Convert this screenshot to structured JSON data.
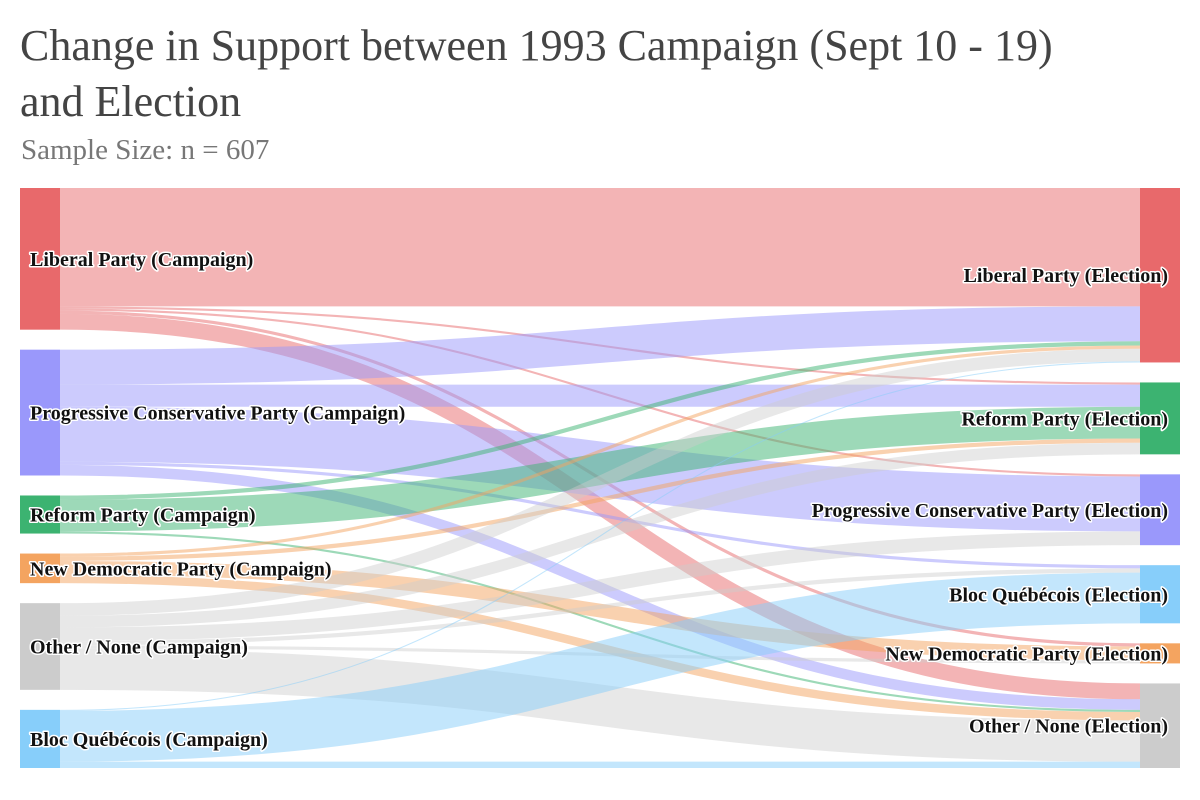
{
  "chart_data": {
    "type": "sankey",
    "title": "Change in Support between 1993 Campaign (Sept 10 - 19) and Election",
    "subtitle": "Sample Size: n = 607",
    "sources": [
      {
        "id": "lib_c",
        "label": "Liberal Party (Campaign)",
        "color": "#e8696b"
      },
      {
        "id": "pc_c",
        "label": "Progressive Conservative Party (Campaign)",
        "color": "#9a98fb"
      },
      {
        "id": "ref_c",
        "label": "Reform Party (Campaign)",
        "color": "#3cb371"
      },
      {
        "id": "ndp_c",
        "label": "New Democratic Party (Campaign)",
        "color": "#f4a460"
      },
      {
        "id": "oth_c",
        "label": "Other / None (Campaign)",
        "color": "#cccccc"
      },
      {
        "id": "bq_c",
        "label": "Bloc Québécois (Campaign)",
        "color": "#87cefa"
      }
    ],
    "targets": [
      {
        "id": "lib_e",
        "label": "Liberal Party (Election)",
        "color": "#e8696b"
      },
      {
        "id": "ref_e",
        "label": "Reform Party (Election)",
        "color": "#3cb371"
      },
      {
        "id": "pc_e",
        "label": "Progressive Conservative Party (Election)",
        "color": "#9a98fb"
      },
      {
        "id": "bq_e",
        "label": "Bloc Québécois (Election)",
        "color": "#87cefa"
      },
      {
        "id": "ndp_e",
        "label": "New Democratic Party (Election)",
        "color": "#f4a460"
      },
      {
        "id": "oth_e",
        "label": "Other / None (Election)",
        "color": "#cccccc"
      }
    ],
    "links": [
      {
        "source": "lib_c",
        "target": "lib_e",
        "value": 112
      },
      {
        "source": "lib_c",
        "target": "ref_e",
        "value": 2
      },
      {
        "source": "lib_c",
        "target": "pc_e",
        "value": 2
      },
      {
        "source": "lib_c",
        "target": "ndp_e",
        "value": 3
      },
      {
        "source": "lib_c",
        "target": "oth_e",
        "value": 15
      },
      {
        "source": "pc_c",
        "target": "lib_e",
        "value": 33
      },
      {
        "source": "pc_c",
        "target": "ref_e",
        "value": 21
      },
      {
        "source": "pc_c",
        "target": "pc_e",
        "value": 52
      },
      {
        "source": "pc_c",
        "target": "bq_e",
        "value": 3
      },
      {
        "source": "pc_c",
        "target": "oth_e",
        "value": 10
      },
      {
        "source": "ref_c",
        "target": "lib_e",
        "value": 4
      },
      {
        "source": "ref_c",
        "target": "ref_e",
        "value": 30
      },
      {
        "source": "ref_c",
        "target": "oth_e",
        "value": 2
      },
      {
        "source": "ndp_c",
        "target": "lib_e",
        "value": 3
      },
      {
        "source": "ndp_c",
        "target": "ref_e",
        "value": 4
      },
      {
        "source": "ndp_c",
        "target": "ndp_e",
        "value": 13
      },
      {
        "source": "ndp_c",
        "target": "oth_e",
        "value": 8
      },
      {
        "source": "oth_c",
        "target": "lib_e",
        "value": 12
      },
      {
        "source": "oth_c",
        "target": "ref_e",
        "value": 11
      },
      {
        "source": "oth_c",
        "target": "pc_e",
        "value": 13
      },
      {
        "source": "oth_c",
        "target": "bq_e",
        "value": 4
      },
      {
        "source": "oth_c",
        "target": "ndp_e",
        "value": 3
      },
      {
        "source": "oth_c",
        "target": "oth_e",
        "value": 39
      },
      {
        "source": "bq_c",
        "target": "bq_e",
        "value": 48
      },
      {
        "source": "bq_c",
        "target": "oth_e",
        "value": 6
      },
      {
        "source": "bq_c",
        "target": "lib_e",
        "value": 1
      }
    ]
  }
}
